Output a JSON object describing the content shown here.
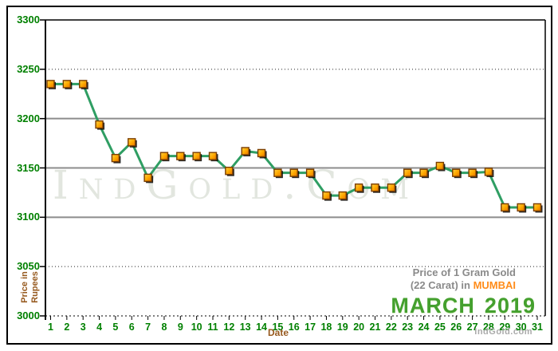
{
  "watermark": "IndGold.Com",
  "branding": "IndGold.com",
  "caption": {
    "line1": "Price of 1 Gram Gold",
    "line2_prefix": "(22 Carat) in ",
    "line2_city": "MUMBAI",
    "month": "MARCH",
    "year": "2019"
  },
  "colors": {
    "line": "#2f9e63",
    "marker_fill_light": "#ffd24a",
    "marker_fill": "#ffaa00",
    "marker_fill_dark": "#e67300",
    "marker_border": "#7a3d00",
    "axis_value_green": "#008000",
    "axis_title_brown": "#96591e",
    "grid_gray": "#8c8c8c",
    "mumbai_orange": "#ff8c1a",
    "month_green": "#44a02e",
    "caption_gray": "#8a8a8a",
    "watermark_gray": "#e2e6df",
    "branding_gray": "#aaaaaa"
  },
  "chart_data": {
    "type": "line",
    "title": "Price of 1 Gram Gold (22 Carat) in MUMBAI - MARCH 2019",
    "xlabel": "Date",
    "ylabel": "Price in Rupees",
    "ylabel_lines": [
      "Price in",
      "Rupees"
    ],
    "x": [
      1,
      2,
      3,
      4,
      5,
      6,
      7,
      8,
      9,
      10,
      11,
      12,
      13,
      14,
      15,
      16,
      17,
      18,
      19,
      20,
      21,
      22,
      23,
      24,
      25,
      26,
      27,
      28,
      29,
      30,
      31
    ],
    "values": [
      3235,
      3235,
      3235,
      3194,
      3160,
      3176,
      3140,
      3162,
      3162,
      3162,
      3162,
      3147,
      3167,
      3165,
      3145,
      3145,
      3145,
      3122,
      3122,
      3130,
      3130,
      3130,
      3145,
      3145,
      3152,
      3145,
      3145,
      3146,
      3110,
      3110,
      3110
    ],
    "series_name": "Gold Price per 1 Gram, 22 Carat, Mumbai (Rs)",
    "ylim": [
      3000,
      3300
    ],
    "y_ticks": [
      3300,
      3250,
      3200,
      3150,
      3100,
      3050,
      3000
    ],
    "dotted_gridlines": [
      3250,
      3050
    ],
    "grid": "horizontal",
    "legend": "none"
  }
}
